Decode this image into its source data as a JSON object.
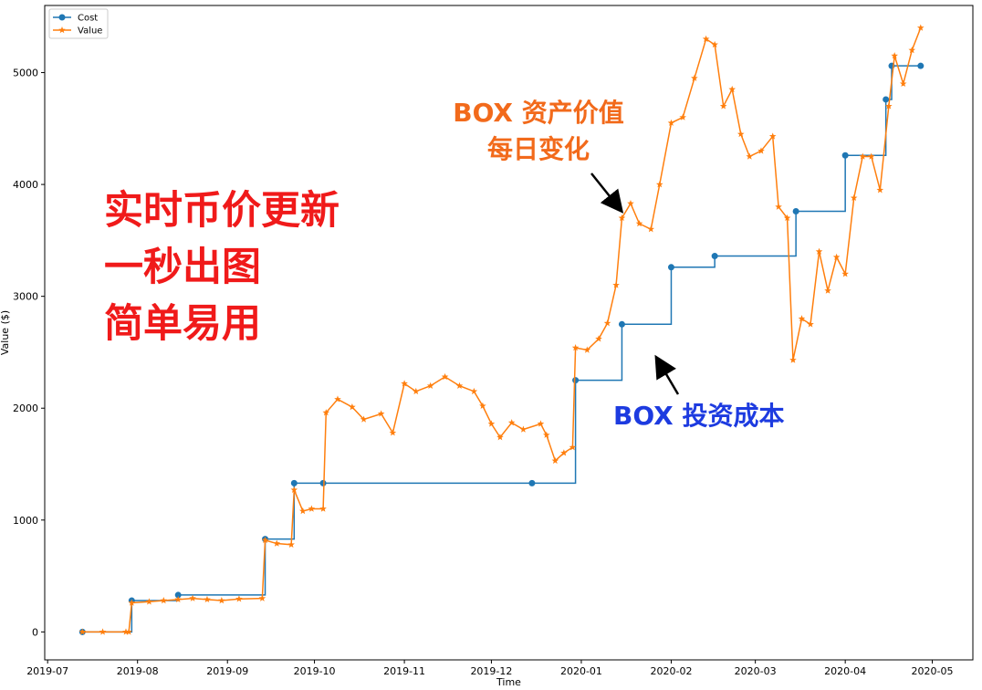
{
  "chart_data": {
    "type": "line",
    "title": "",
    "xlabel": "Time",
    "ylabel": "Value ($)",
    "ylim": [
      -250,
      5600
    ],
    "xlim": [
      "2019-06-30",
      "2020-05-15"
    ],
    "x_ticks": [
      "2019-07",
      "2019-08",
      "2019-09",
      "2019-10",
      "2019-11",
      "2019-12",
      "2020-01",
      "2020-02",
      "2020-03",
      "2020-04",
      "2020-05"
    ],
    "x_tick_dates": [
      "2019-07-01",
      "2019-08-01",
      "2019-09-01",
      "2019-10-01",
      "2019-11-01",
      "2019-12-01",
      "2020-01-01",
      "2020-02-01",
      "2020-03-01",
      "2020-04-01",
      "2020-05-01"
    ],
    "y_ticks": [
      0,
      1000,
      2000,
      3000,
      4000,
      5000
    ],
    "y_tick_labels": [
      "0",
      "1000",
      "2000",
      "3000",
      "4000",
      "5000"
    ],
    "grid": false,
    "legend_position": "top-left",
    "series": [
      {
        "name": "Cost",
        "color": "#1f77b4",
        "marker": "circle",
        "step": true,
        "points": [
          [
            "2019-07-13",
            0
          ],
          [
            "2019-07-30",
            280
          ],
          [
            "2019-08-15",
            330
          ],
          [
            "2019-09-14",
            830
          ],
          [
            "2019-09-24",
            1330
          ],
          [
            "2019-10-04",
            1330
          ],
          [
            "2019-12-15",
            1330
          ],
          [
            "2019-12-30",
            2250
          ],
          [
            "2020-01-15",
            2750
          ],
          [
            "2020-02-01",
            3260
          ],
          [
            "2020-02-16",
            3360
          ],
          [
            "2020-03-15",
            3760
          ],
          [
            "2020-04-01",
            4260
          ],
          [
            "2020-04-15",
            4760
          ],
          [
            "2020-04-17",
            5060
          ],
          [
            "2020-04-27",
            5060
          ]
        ]
      },
      {
        "name": "Value",
        "color": "#ff7f0e",
        "marker": "star",
        "points": [
          [
            "2019-07-13",
            0
          ],
          [
            "2019-07-20",
            0
          ],
          [
            "2019-07-28",
            0
          ],
          [
            "2019-07-29",
            0
          ],
          [
            "2019-07-30",
            260
          ],
          [
            "2019-08-05",
            270
          ],
          [
            "2019-08-10",
            280
          ],
          [
            "2019-08-15",
            290
          ],
          [
            "2019-08-20",
            300
          ],
          [
            "2019-08-25",
            290
          ],
          [
            "2019-08-30",
            280
          ],
          [
            "2019-09-05",
            295
          ],
          [
            "2019-09-13",
            300
          ],
          [
            "2019-09-14",
            820
          ],
          [
            "2019-09-18",
            790
          ],
          [
            "2019-09-23",
            780
          ],
          [
            "2019-09-24",
            1270
          ],
          [
            "2019-09-27",
            1080
          ],
          [
            "2019-09-30",
            1100
          ],
          [
            "2019-10-04",
            1100
          ],
          [
            "2019-10-05",
            1960
          ],
          [
            "2019-10-09",
            2080
          ],
          [
            "2019-10-14",
            2010
          ],
          [
            "2019-10-18",
            1900
          ],
          [
            "2019-10-24",
            1950
          ],
          [
            "2019-10-28",
            1780
          ],
          [
            "2019-11-01",
            2220
          ],
          [
            "2019-11-05",
            2150
          ],
          [
            "2019-11-10",
            2200
          ],
          [
            "2019-11-15",
            2280
          ],
          [
            "2019-11-20",
            2200
          ],
          [
            "2019-11-25",
            2150
          ],
          [
            "2019-11-28",
            2020
          ],
          [
            "2019-12-01",
            1860
          ],
          [
            "2019-12-04",
            1740
          ],
          [
            "2019-12-08",
            1870
          ],
          [
            "2019-12-12",
            1810
          ],
          [
            "2019-12-18",
            1860
          ],
          [
            "2019-12-20",
            1760
          ],
          [
            "2019-12-23",
            1530
          ],
          [
            "2019-12-26",
            1600
          ],
          [
            "2019-12-29",
            1650
          ],
          [
            "2019-12-30",
            2540
          ],
          [
            "2020-01-03",
            2520
          ],
          [
            "2020-01-07",
            2620
          ],
          [
            "2020-01-10",
            2760
          ],
          [
            "2020-01-13",
            3100
          ],
          [
            "2020-01-15",
            3700
          ],
          [
            "2020-01-18",
            3830
          ],
          [
            "2020-01-21",
            3650
          ],
          [
            "2020-01-25",
            3600
          ],
          [
            "2020-01-28",
            4000
          ],
          [
            "2020-02-01",
            4550
          ],
          [
            "2020-02-05",
            4600
          ],
          [
            "2020-02-09",
            4950
          ],
          [
            "2020-02-13",
            5300
          ],
          [
            "2020-02-16",
            5250
          ],
          [
            "2020-02-19",
            4700
          ],
          [
            "2020-02-22",
            4850
          ],
          [
            "2020-02-25",
            4450
          ],
          [
            "2020-02-28",
            4250
          ],
          [
            "2020-03-03",
            4300
          ],
          [
            "2020-03-07",
            4430
          ],
          [
            "2020-03-09",
            3800
          ],
          [
            "2020-03-12",
            3700
          ],
          [
            "2020-03-14",
            2430
          ],
          [
            "2020-03-17",
            2800
          ],
          [
            "2020-03-20",
            2750
          ],
          [
            "2020-03-23",
            3400
          ],
          [
            "2020-03-26",
            3050
          ],
          [
            "2020-03-29",
            3350
          ],
          [
            "2020-04-01",
            3200
          ],
          [
            "2020-04-04",
            3880
          ],
          [
            "2020-04-07",
            4250
          ],
          [
            "2020-04-10",
            4250
          ],
          [
            "2020-04-13",
            3950
          ],
          [
            "2020-04-16",
            4700
          ],
          [
            "2020-04-18",
            5150
          ],
          [
            "2020-04-21",
            4900
          ],
          [
            "2020-04-24",
            5200
          ],
          [
            "2020-04-27",
            5400
          ]
        ]
      }
    ]
  },
  "annotations": {
    "red_text": "实时币价更新\n一秒出图\n简单易用",
    "orange_text": "BOX 资产价值\n每日变化",
    "blue_text": "BOX 投资成本"
  }
}
